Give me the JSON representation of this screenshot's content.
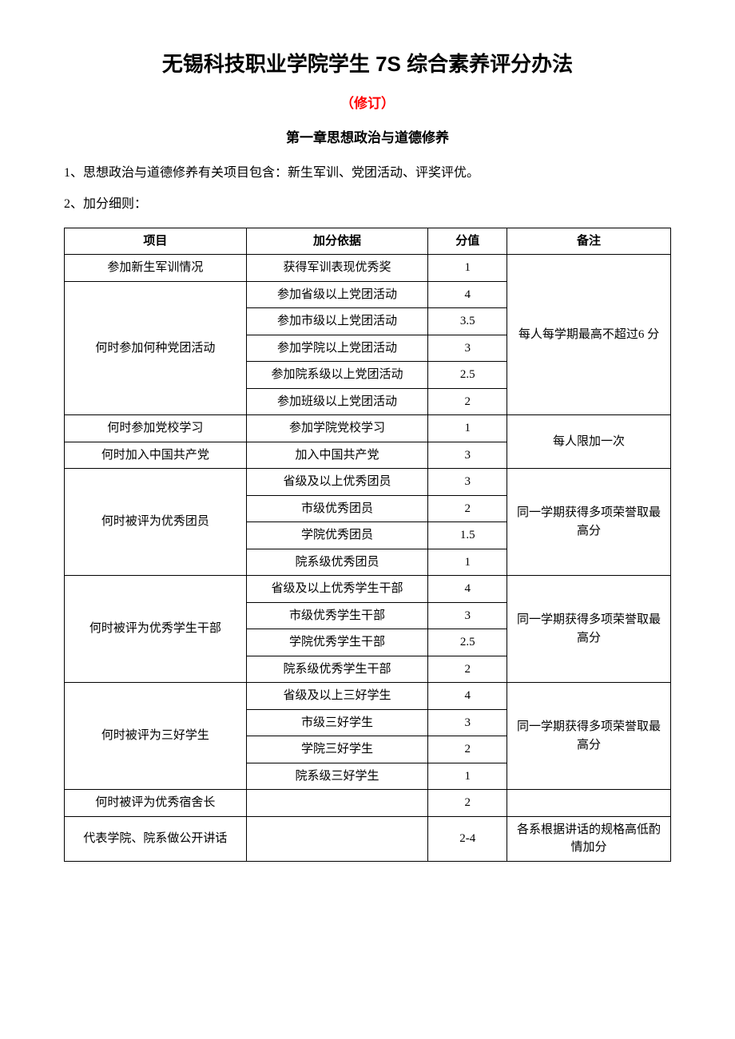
{
  "title": "无锡科技职业学院学生 7S 综合素养评分办法",
  "subtitle": "（修订）",
  "chapter": "第一章思想政治与道德修养",
  "para1": "1、思想政治与道德修养有关项目包含：新生军训、党团活动、评奖评优。",
  "para2": "2、加分细则：",
  "headers": {
    "item": "项目",
    "basis": "加分依据",
    "score": "分值",
    "note": "备注"
  },
  "sections": [
    {
      "item": "参加新生军训情况",
      "itemRowspan": 1,
      "rows": [
        {
          "basis": "获得军训表现优秀奖",
          "score": "1"
        }
      ],
      "note": "每人每学期最高不超过6 分",
      "noteRowspan": 6,
      "noteStart": true
    },
    {
      "item": "何时参加何种党团活动",
      "itemRowspan": 5,
      "rows": [
        {
          "basis": "参加省级以上党团活动",
          "score": "4"
        },
        {
          "basis": "参加市级以上党团活动",
          "score": "3.5"
        },
        {
          "basis": "参加学院以上党团活动",
          "score": "3"
        },
        {
          "basis": "参加院系级以上党团活动",
          "score": "2.5"
        },
        {
          "basis": "参加班级以上党团活动",
          "score": "2"
        }
      ],
      "noteStart": false
    },
    {
      "item": "何时参加党校学习",
      "itemRowspan": 1,
      "rows": [
        {
          "basis": "参加学院党校学习",
          "score": "1"
        }
      ],
      "note": "每人限加一次",
      "noteRowspan": 2,
      "noteStart": true
    },
    {
      "item": "何时加入中国共产党",
      "itemRowspan": 1,
      "rows": [
        {
          "basis": "加入中国共产党",
          "score": "3"
        }
      ],
      "noteStart": false
    },
    {
      "item": "何时被评为优秀团员",
      "itemRowspan": 4,
      "rows": [
        {
          "basis": "省级及以上优秀团员",
          "score": "3"
        },
        {
          "basis": "市级优秀团员",
          "score": "2"
        },
        {
          "basis": "学院优秀团员",
          "score": "1.5"
        },
        {
          "basis": "院系级优秀团员",
          "score": "1"
        }
      ],
      "note": "同一学期获得多项荣誉取最高分",
      "noteRowspan": 4,
      "noteStart": true
    },
    {
      "item": "何时被评为优秀学生干部",
      "itemRowspan": 4,
      "rows": [
        {
          "basis": "省级及以上优秀学生干部",
          "score": "4"
        },
        {
          "basis": "市级优秀学生干部",
          "score": "3"
        },
        {
          "basis": "学院优秀学生干部",
          "score": "2.5"
        },
        {
          "basis": "院系级优秀学生干部",
          "score": "2"
        }
      ],
      "note": "同一学期获得多项荣誉取最高分",
      "noteRowspan": 4,
      "noteStart": true
    },
    {
      "item": "何时被评为三好学生",
      "itemRowspan": 4,
      "rows": [
        {
          "basis": "省级及以上三好学生",
          "score": "4"
        },
        {
          "basis": "市级三好学生",
          "score": "3"
        },
        {
          "basis": "学院三好学生",
          "score": "2"
        },
        {
          "basis": "院系级三好学生",
          "score": "1"
        }
      ],
      "note": "同一学期获得多项荣誉取最高分",
      "noteRowspan": 4,
      "noteStart": true
    },
    {
      "item": "何时被评为优秀宿舍长",
      "itemRowspan": 1,
      "rows": [
        {
          "basis": "",
          "score": "2"
        }
      ],
      "note": "",
      "noteRowspan": 1,
      "noteStart": true
    },
    {
      "item": "代表学院、院系做公开讲话",
      "itemRowspan": 1,
      "rows": [
        {
          "basis": "",
          "score": "2-4"
        }
      ],
      "note": "各系根据讲话的规格高低酌情加分",
      "noteRowspan": 1,
      "noteStart": true
    }
  ]
}
